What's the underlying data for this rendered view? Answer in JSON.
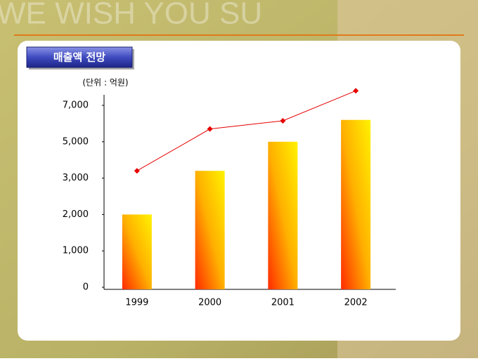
{
  "background_text": "WE WISH YOU SU",
  "chart_data": {
    "type": "bar",
    "title": "매출액 전망",
    "unit_label": "(단위 : 억원)",
    "categories": [
      "1999",
      "2000",
      "2001",
      "2002"
    ],
    "series": [
      {
        "type": "bar",
        "color": "#ff2a00",
        "values": [
          2000,
          3400,
          5000,
          6200
        ]
      },
      {
        "type": "line",
        "color": "#e60000",
        "values": [
          3400,
          5700,
          6150,
          7800
        ]
      }
    ],
    "ylim": [
      0,
      7000
    ],
    "yticks": [
      0,
      {
        "value": 1000,
        "label": "1,000"
      },
      {
        "value": 2000,
        "label": "2,000"
      },
      {
        "value": 3000,
        "label": "3,000"
      },
      {
        "value": 5000,
        "label": "5,000"
      },
      {
        "value": 7000,
        "label": "7,000"
      }
    ]
  }
}
